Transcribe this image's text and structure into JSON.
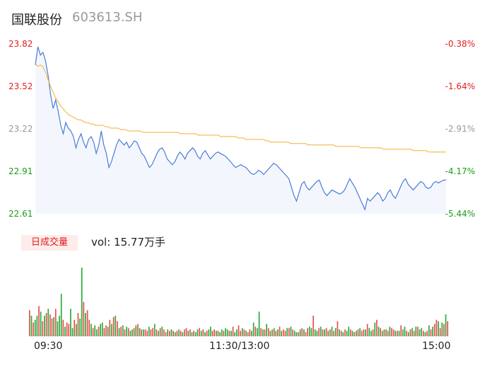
{
  "header": {
    "name": "国联股份",
    "code": "603613.SH"
  },
  "volume": {
    "tab_label": "日成交量",
    "prefix": "vol: ",
    "value": "15.77万手"
  },
  "chart_data": {
    "type": "line",
    "price_axis": {
      "ylim": [
        22.61,
        23.82
      ],
      "ticks": [
        "23.82",
        "23.52",
        "23.22",
        "22.91",
        "22.61"
      ],
      "tick_colors": [
        "#e02020",
        "#e02020",
        "#999999",
        "#1a9e1a",
        "#1a9e1a"
      ]
    },
    "pct_axis": {
      "ticks": [
        "-0.38%",
        "-1.64%",
        "-2.91%",
        "-4.17%",
        "-5.44%"
      ],
      "tick_colors": [
        "#e02020",
        "#e02020",
        "#999999",
        "#1a9e1a",
        "#1a9e1a"
      ]
    },
    "x_labels": [
      "09:30",
      "11:30/13:00",
      "15:00"
    ],
    "series": [
      {
        "color": "#4a7bd8",
        "values": [
          23.67,
          23.8,
          23.74,
          23.76,
          23.7,
          23.6,
          23.46,
          23.36,
          23.42,
          23.34,
          23.24,
          23.18,
          23.26,
          23.22,
          23.2,
          23.16,
          23.08,
          23.14,
          23.18,
          23.12,
          23.08,
          23.14,
          23.16,
          23.12,
          23.04,
          23.1,
          23.2,
          23.1,
          23.04,
          22.94,
          22.98,
          23.04,
          23.1,
          23.14,
          23.12,
          23.1,
          23.12,
          23.08,
          23.1,
          23.13,
          23.12,
          23.08,
          23.04,
          23.02,
          22.98,
          22.94,
          22.96,
          23.0,
          23.04,
          23.07,
          23.08,
          23.05,
          23.0,
          22.98,
          22.96,
          22.98,
          23.02,
          23.05,
          23.03,
          23.0,
          23.04,
          23.06,
          23.08,
          23.06,
          23.02,
          23.0,
          23.04,
          23.06,
          23.03,
          23.0,
          23.02,
          23.04,
          23.05,
          23.04,
          23.03,
          23.02,
          23.0,
          22.98,
          22.96,
          22.94,
          22.95,
          22.96,
          22.95,
          22.94,
          22.92,
          22.9,
          22.89,
          22.9,
          22.92,
          22.91,
          22.89,
          22.91,
          22.93,
          22.95,
          22.97,
          22.96,
          22.94,
          22.92,
          22.9,
          22.88,
          22.86,
          22.8,
          22.74,
          22.7,
          22.76,
          22.82,
          22.84,
          22.8,
          22.78,
          22.8,
          22.82,
          22.84,
          22.85,
          22.8,
          22.76,
          22.74,
          22.76,
          22.78,
          22.77,
          22.76,
          22.75,
          22.76,
          22.78,
          22.82,
          22.86,
          22.83,
          22.8,
          22.76,
          22.72,
          22.68,
          22.64,
          22.72,
          22.7,
          22.72,
          22.74,
          22.76,
          22.74,
          22.7,
          22.72,
          22.76,
          22.78,
          22.74,
          22.72,
          22.76,
          22.8,
          22.84,
          22.86,
          22.82,
          22.8,
          22.78,
          22.8,
          22.82,
          22.84,
          22.83,
          22.8,
          22.79,
          22.8,
          22.83,
          22.84,
          22.83,
          22.84,
          22.85,
          22.85
        ]
      },
      {
        "color": "#f0b030",
        "values": [
          23.68,
          23.66,
          23.67,
          23.66,
          23.62,
          23.57,
          23.52,
          23.48,
          23.44,
          23.41,
          23.38,
          23.36,
          23.34,
          23.32,
          23.31,
          23.3,
          23.29,
          23.28,
          23.28,
          23.27,
          23.26,
          23.26,
          23.25,
          23.25,
          23.24,
          23.24,
          23.24,
          23.24,
          23.23,
          23.23,
          23.22,
          23.22,
          23.22,
          23.22,
          23.21,
          23.21,
          23.21,
          23.2,
          23.2,
          23.2,
          23.2,
          23.2,
          23.2,
          23.19,
          23.19,
          23.19,
          23.19,
          23.19,
          23.19,
          23.19,
          23.19,
          23.19,
          23.19,
          23.19,
          23.19,
          23.19,
          23.19,
          23.19,
          23.18,
          23.18,
          23.18,
          23.18,
          23.18,
          23.18,
          23.18,
          23.17,
          23.17,
          23.17,
          23.17,
          23.17,
          23.17,
          23.17,
          23.17,
          23.17,
          23.16,
          23.16,
          23.16,
          23.16,
          23.16,
          23.16,
          23.16,
          23.15,
          23.15,
          23.15,
          23.14,
          23.14,
          23.14,
          23.14,
          23.14,
          23.14,
          23.14,
          23.14,
          23.13,
          23.13,
          23.12,
          23.12,
          23.12,
          23.12,
          23.12,
          23.12,
          23.12,
          23.12,
          23.11,
          23.11,
          23.11,
          23.11,
          23.11,
          23.11,
          23.11,
          23.1,
          23.1,
          23.1,
          23.1,
          23.1,
          23.1,
          23.1,
          23.1,
          23.1,
          23.1,
          23.1,
          23.09,
          23.09,
          23.09,
          23.09,
          23.09,
          23.09,
          23.09,
          23.09,
          23.09,
          23.09,
          23.08,
          23.08,
          23.08,
          23.08,
          23.08,
          23.08,
          23.08,
          23.08,
          23.08,
          23.07,
          23.07,
          23.07,
          23.07,
          23.07,
          23.07,
          23.07,
          23.07,
          23.07,
          23.07,
          23.07,
          23.07,
          23.06,
          23.06,
          23.06,
          23.06,
          23.06,
          23.06,
          23.05,
          23.05,
          23.05,
          23.05,
          23.05,
          23.05,
          23.05,
          23.05
        ]
      }
    ],
    "volume_bars": {
      "max": 100,
      "values": [
        38,
        30,
        20,
        24,
        30,
        44,
        36,
        22,
        30,
        34,
        40,
        32,
        26,
        28,
        40,
        22,
        30,
        62,
        24,
        14,
        20,
        18,
        40,
        12,
        24,
        18,
        34,
        26,
        100,
        50,
        34,
        38,
        24,
        18,
        12,
        16,
        10,
        14,
        18,
        20,
        12,
        16,
        14,
        24,
        18,
        28,
        30,
        22,
        12,
        14,
        16,
        10,
        14,
        12,
        8,
        10,
        12,
        16,
        18,
        12,
        10,
        10,
        10,
        8,
        14,
        10,
        12,
        18,
        10,
        8,
        12,
        14,
        10,
        6,
        10,
        8,
        10,
        8,
        6,
        8,
        10,
        8,
        6,
        10,
        12,
        8,
        10,
        6,
        8,
        6,
        10,
        12,
        8,
        10,
        6,
        8,
        10,
        14,
        8,
        10,
        8,
        8,
        6,
        10,
        8,
        12,
        10,
        8,
        8,
        14,
        6,
        10,
        16,
        8,
        12,
        10,
        8,
        6,
        10,
        8,
        20,
        14,
        12,
        36,
        12,
        10,
        10,
        18,
        12,
        8,
        10,
        12,
        8,
        10,
        14,
        8,
        10,
        8,
        12,
        12,
        14,
        10,
        8,
        6,
        6,
        10,
        12,
        10,
        6,
        12,
        14,
        12,
        30,
        10,
        8,
        12,
        14,
        10,
        10,
        12,
        8,
        10,
        14,
        8,
        12,
        22,
        10,
        8,
        6,
        10,
        8,
        14,
        10,
        8,
        6,
        8,
        10,
        12,
        8,
        10,
        10,
        18,
        12,
        8,
        10,
        20,
        24,
        14,
        12,
        8,
        10,
        10,
        8,
        14,
        12,
        10,
        8,
        8,
        8,
        16,
        10,
        14,
        8,
        6,
        10,
        12,
        8,
        14,
        14,
        10,
        12,
        8,
        6,
        8,
        16,
        10,
        14,
        18,
        24,
        22,
        12,
        20,
        18,
        32,
        22
      ],
      "colors": [
        "r",
        "g",
        "r",
        "g",
        "g",
        "r",
        "g",
        "r",
        "g",
        "r",
        "g",
        "r",
        "r",
        "g",
        "r",
        "g",
        "g",
        "g",
        "r",
        "g",
        "r",
        "r",
        "g",
        "g",
        "r",
        "g",
        "r",
        "g",
        "g",
        "r",
        "g",
        "r",
        "r",
        "g",
        "r",
        "g",
        "g",
        "r",
        "g",
        "g",
        "r",
        "r",
        "g",
        "r",
        "g",
        "r",
        "g",
        "r",
        "g",
        "r",
        "g",
        "r",
        "g",
        "r",
        "g",
        "g",
        "r",
        "g",
        "r",
        "g",
        "r",
        "g",
        "r",
        "r",
        "g",
        "r",
        "r",
        "g",
        "r",
        "g",
        "r",
        "g",
        "r",
        "r",
        "g",
        "r",
        "g",
        "r",
        "g",
        "r",
        "g",
        "r",
        "g",
        "r",
        "r",
        "g",
        "r",
        "g",
        "r",
        "g",
        "g",
        "r",
        "g",
        "r",
        "g",
        "r",
        "g",
        "g",
        "r",
        "r",
        "g",
        "r",
        "g",
        "g",
        "r",
        "g",
        "g",
        "r",
        "g",
        "r",
        "g",
        "g",
        "r",
        "r",
        "g",
        "r",
        "g",
        "r",
        "r",
        "g",
        "g",
        "r",
        "g",
        "g",
        "r",
        "g",
        "r",
        "g",
        "r",
        "g",
        "r",
        "g",
        "r",
        "g",
        "r",
        "g",
        "r",
        "r",
        "g",
        "r",
        "g",
        "r",
        "g",
        "g",
        "r",
        "g",
        "r",
        "g",
        "r",
        "r",
        "g",
        "g",
        "r",
        "g",
        "g",
        "r",
        "g",
        "r",
        "g",
        "r",
        "g",
        "r",
        "g",
        "r",
        "g",
        "r",
        "g",
        "r",
        "g",
        "r",
        "g",
        "g",
        "r",
        "g",
        "r",
        "g",
        "r",
        "g",
        "r",
        "r",
        "g",
        "r",
        "g",
        "g",
        "r",
        "g",
        "r",
        "g",
        "r",
        "g",
        "r",
        "g",
        "r",
        "g",
        "r",
        "r",
        "g",
        "r",
        "g",
        "r",
        "g",
        "g",
        "r",
        "g",
        "r",
        "g",
        "r",
        "g",
        "r",
        "g",
        "g",
        "r",
        "g",
        "r",
        "g",
        "r",
        "g",
        "r",
        "r",
        "g",
        "r",
        "g",
        "r",
        "g",
        "r",
        "g",
        "r",
        "r",
        "g",
        "g"
      ]
    }
  }
}
